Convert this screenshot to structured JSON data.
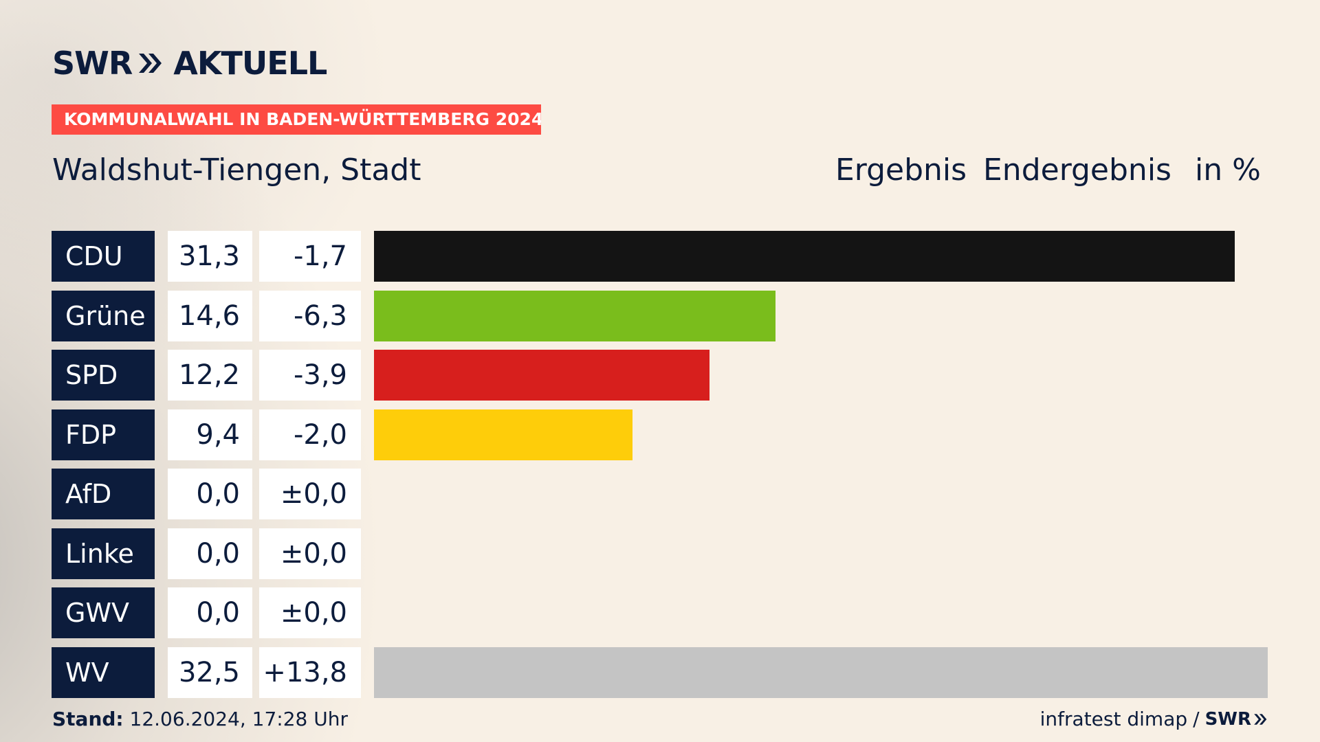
{
  "brand": {
    "swr": "SWR",
    "aktuell": "AKTUELL",
    "name": "SWR AKTUELL",
    "chevron_icon": "double-chevron-right-icon"
  },
  "election": "KOMMUNALWAHL IN BADEN-WÜRTTEMBERG 2024",
  "place": "Waldshut-Tiengen, Stadt",
  "header": {
    "ergebnis": "Ergebnis",
    "status": "Endergebnis",
    "unit": "in %"
  },
  "chart_data": {
    "type": "bar",
    "orientation": "horizontal",
    "categories": [
      "CDU",
      "Grüne",
      "SPD",
      "FDP",
      "AfD",
      "Linke",
      "GWV",
      "WV"
    ],
    "values": [
      31.3,
      14.6,
      12.2,
      9.4,
      0.0,
      0.0,
      0.0,
      32.5
    ],
    "value_labels": [
      "31,3",
      "14,6",
      "12,2",
      "9,4",
      "0,0",
      "0,0",
      "0,0",
      "32,5"
    ],
    "changes": [
      -1.7,
      -6.3,
      -3.9,
      -2.0,
      0.0,
      0.0,
      0.0,
      13.8
    ],
    "change_labels": [
      "-1,7",
      "-6,3",
      "-3,9",
      "-2,0",
      "±0,0",
      "±0,0",
      "±0,0",
      "+13,8"
    ],
    "colors": [
      "#141414",
      "#7abd1c",
      "#d71f1d",
      "#fecd0a",
      "#0095d8",
      "#be3075",
      "#c4c4c4",
      "#c4c4c4"
    ],
    "xlim": [
      0,
      32.5
    ],
    "grid": false,
    "legend": "none"
  },
  "footer": {
    "stand_label": "Stand:",
    "stand_value": "12.06.2024, 17:28 Uhr",
    "source": "infratest dimap",
    "separator": "/",
    "source_brand": "SWR"
  }
}
